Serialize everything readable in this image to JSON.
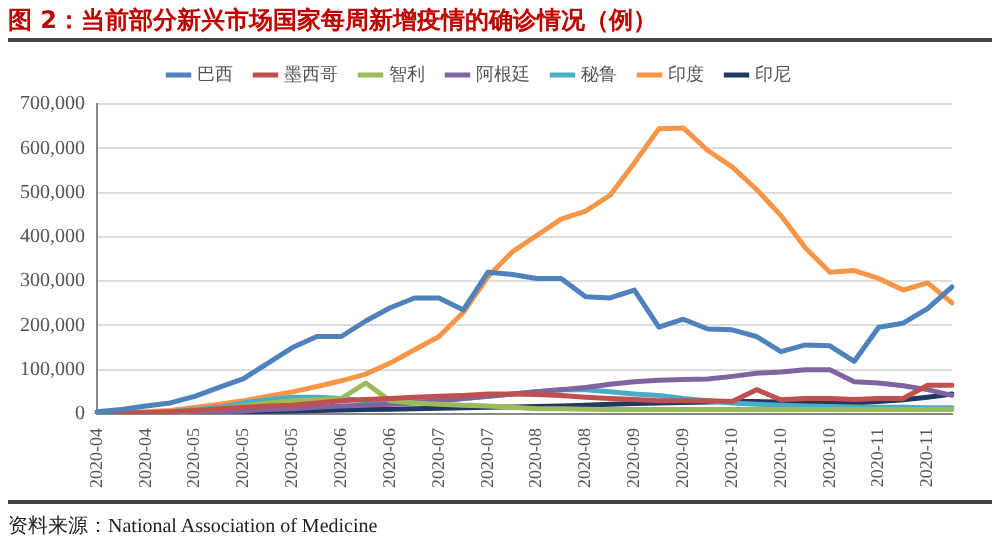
{
  "chart_data": {
    "type": "line",
    "title": "图 2：当前部分新兴市场国家每周新增疫情的确诊情况（例）",
    "annotations": [
      "资料来源：National Association of Medicine"
    ],
    "categories": [
      "2020-04",
      null,
      "2020-04",
      null,
      "2020-05",
      null,
      "2020-05",
      null,
      "2020-05",
      null,
      "2020-06",
      null,
      "2020-06",
      null,
      "2020-07",
      null,
      "2020-07",
      null,
      "2020-08",
      null,
      "2020-08",
      null,
      "2020-09",
      null,
      "2020-09",
      null,
      "2020-10",
      null,
      "2020-10",
      null,
      "2020-10",
      null,
      "2020-11",
      null,
      "2020-11",
      null
    ],
    "ylim": [
      0,
      700000
    ],
    "yticks": [
      {
        "value": 0,
        "label": "0"
      },
      {
        "value": 100000,
        "label": "100,000"
      },
      {
        "value": 200000,
        "label": "200,000"
      },
      {
        "value": 300000,
        "label": "300,000"
      },
      {
        "value": 400000,
        "label": "400,000"
      },
      {
        "value": 500000,
        "label": "500,000"
      },
      {
        "value": 600000,
        "label": "600,000"
      },
      {
        "value": 700000,
        "label": "700,000"
      }
    ],
    "grid": "y",
    "legend": "top",
    "marker": "none",
    "line_style": "solid",
    "series": [
      {
        "name": "巴西",
        "color": "#4f81bd",
        "values": [
          5000,
          10000,
          18000,
          25000,
          40000,
          60000,
          80000,
          115000,
          150000,
          175000,
          175000,
          210000,
          240000,
          262000,
          262000,
          235000,
          320000,
          315000,
          306000,
          306000,
          265000,
          262000,
          280000,
          196000,
          214000,
          192000,
          190000,
          175000,
          141000,
          156000,
          154000,
          119000,
          196000,
          205000,
          238000,
          287000
        ]
      },
      {
        "name": "墨西哥",
        "color": "#c0504d",
        "values": [
          1000,
          2000,
          3000,
          5000,
          8000,
          12000,
          15000,
          18000,
          20000,
          25000,
          30000,
          33000,
          35000,
          38000,
          40000,
          42000,
          45000,
          45000,
          44000,
          42000,
          38000,
          35000,
          33000,
          30000,
          30000,
          30000,
          28000,
          55000,
          32000,
          35000,
          35000,
          33000,
          35000,
          35000,
          65000,
          65000
        ]
      },
      {
        "name": "智利",
        "color": "#9bbb59",
        "values": [
          null,
          null,
          2000,
          4000,
          8000,
          12000,
          18000,
          25000,
          30000,
          32000,
          35000,
          70000,
          30000,
          25000,
          22000,
          20000,
          18000,
          15000,
          12000,
          12000,
          11000,
          10000,
          10000,
          10000,
          10000,
          10000,
          10000,
          10000,
          10000,
          10000,
          10000,
          10000,
          10000,
          10000,
          10000,
          10000
        ]
      },
      {
        "name": "阿根廷",
        "color": "#8064a2",
        "values": [
          0,
          1000,
          1000,
          2000,
          3000,
          5000,
          7000,
          10000,
          12000,
          15000,
          18000,
          20000,
          22000,
          25000,
          30000,
          35000,
          40000,
          45000,
          50000,
          55000,
          60000,
          67000,
          73000,
          76000,
          78000,
          79000,
          85000,
          92000,
          95000,
          100000,
          100000,
          73000,
          70000,
          64000,
          55000,
          42000
        ]
      },
      {
        "name": "秘鲁",
        "color": "#4bacc6",
        "values": [
          0,
          1000,
          3000,
          5000,
          10000,
          15000,
          25000,
          33000,
          38000,
          38000,
          35000,
          30000,
          28000,
          28000,
          30000,
          35000,
          40000,
          45000,
          50000,
          55000,
          55000,
          50000,
          45000,
          42000,
          35000,
          30000,
          25000,
          22000,
          20000,
          18000,
          17000,
          16000,
          15000,
          15000,
          14000,
          14000
        ]
      },
      {
        "name": "印度",
        "color": "#f79646",
        "values": [
          2000,
          3000,
          5000,
          8000,
          15000,
          22000,
          30000,
          40000,
          50000,
          62000,
          75000,
          90000,
          115000,
          145000,
          175000,
          230000,
          310000,
          366000,
          403000,
          440000,
          458000,
          494000,
          567000,
          644000,
          646000,
          595000,
          558000,
          507000,
          448000,
          375000,
          320000,
          324000,
          306000,
          280000,
          296000,
          251000
        ]
      },
      {
        "name": "印尼",
        "color": "#1f3864",
        "values": [
          0,
          1000,
          1000,
          2000,
          3000,
          4000,
          5000,
          6000,
          7000,
          8000,
          9000,
          10000,
          11000,
          12000,
          13000,
          14000,
          15000,
          16000,
          17000,
          18000,
          20000,
          22000,
          24000,
          25000,
          26000,
          27000,
          28000,
          28000,
          27000,
          26000,
          25000,
          25000,
          28000,
          32000,
          38000,
          45000
        ]
      }
    ]
  }
}
